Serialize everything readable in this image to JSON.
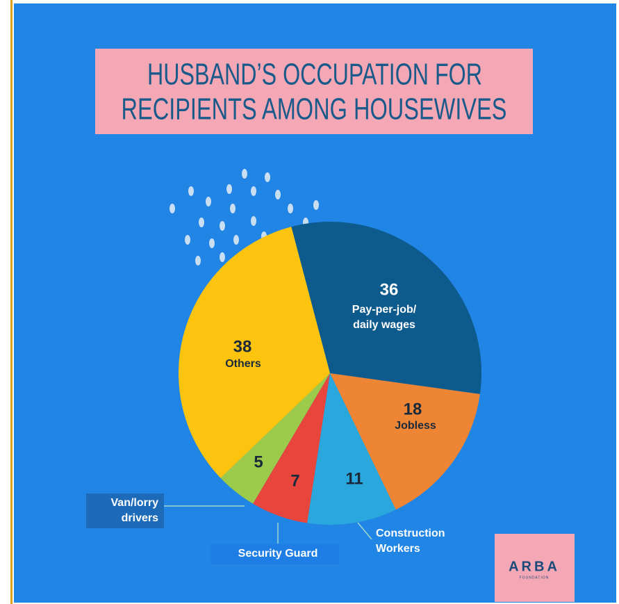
{
  "chart_data": {
    "type": "pie",
    "title": [
      "HUSBAND’S OCCUPATION FOR",
      "RECIPIENTS AMONG HOUSEWIVES"
    ],
    "categories": [
      [
        "Pay-per-job/",
        "daily wages"
      ],
      [
        "Jobless"
      ],
      [
        "Construction",
        "Workers"
      ],
      [
        "Security Guard"
      ],
      [
        "Van/lorry",
        "drivers"
      ],
      [
        "Others"
      ]
    ],
    "values": [
      36,
      18,
      11,
      7,
      5,
      38
    ],
    "colors": [
      "#0d5a8c",
      "#ee8535",
      "#2aa7dc",
      "#e8453c",
      "#9cca4a",
      "#fcc30f"
    ]
  },
  "logo": {
    "name": "ARBA",
    "subtitle": "FOUNDATION"
  }
}
